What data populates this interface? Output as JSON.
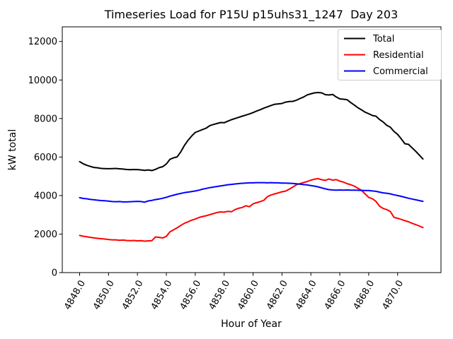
{
  "chart_data": {
    "type": "line",
    "title": "Timeseries Load for P15U p15uhs31_1247  Day 203",
    "xlabel": "Hour of Year",
    "ylabel": "kW total",
    "background_color": "#ffffff",
    "grid": false,
    "legend_position": "upper right",
    "xlim": [
      4846.8,
      4873.0
    ],
    "ylim": [
      0,
      12760
    ],
    "x_ticks": {
      "values": [
        4848,
        4850,
        4852,
        4854,
        4856,
        4858,
        4860,
        4862,
        4864,
        4866,
        4868,
        4870
      ],
      "labels": [
        "4848.0",
        "4850.0",
        "4852.0",
        "4854.0",
        "4856.0",
        "4858.0",
        "4860.0",
        "4862.0",
        "4864.0",
        "4866.0",
        "4868.0",
        "4870.0"
      ]
    },
    "y_ticks": {
      "values": [
        0,
        2000,
        4000,
        6000,
        8000,
        10000,
        12000
      ],
      "labels": [
        "0",
        "2000",
        "4000",
        "6000",
        "8000",
        "10000",
        "12000"
      ]
    },
    "x_start": 4848.0,
    "x_step": 0.25,
    "series": [
      {
        "name": "Total",
        "color": "#000000",
        "values": [
          5760,
          5650,
          5570,
          5510,
          5460,
          5440,
          5410,
          5400,
          5395,
          5400,
          5410,
          5390,
          5375,
          5355,
          5345,
          5355,
          5350,
          5330,
          5310,
          5330,
          5300,
          5360,
          5450,
          5500,
          5640,
          5880,
          5960,
          6010,
          6270,
          6600,
          6870,
          7090,
          7280,
          7350,
          7430,
          7500,
          7630,
          7690,
          7740,
          7790,
          7780,
          7860,
          7940,
          8000,
          8060,
          8120,
          8180,
          8240,
          8310,
          8390,
          8460,
          8540,
          8610,
          8680,
          8740,
          8760,
          8780,
          8850,
          8880,
          8890,
          8950,
          9040,
          9120,
          9230,
          9280,
          9330,
          9350,
          9330,
          9240,
          9220,
          9250,
          9120,
          9020,
          9000,
          8980,
          8830,
          8700,
          8560,
          8450,
          8330,
          8250,
          8160,
          8120,
          7950,
          7820,
          7650,
          7550,
          7330,
          7180,
          6950,
          6690,
          6660,
          6480,
          6300,
          6100,
          5900
        ]
      },
      {
        "name": "Residential",
        "color": "#ff0000",
        "values": [
          1930,
          1890,
          1860,
          1830,
          1800,
          1780,
          1760,
          1740,
          1720,
          1700,
          1700,
          1680,
          1690,
          1670,
          1660,
          1670,
          1650,
          1660,
          1630,
          1650,
          1660,
          1850,
          1830,
          1800,
          1880,
          2120,
          2220,
          2330,
          2450,
          2560,
          2640,
          2720,
          2780,
          2860,
          2910,
          2950,
          3010,
          3060,
          3120,
          3150,
          3140,
          3180,
          3160,
          3270,
          3340,
          3380,
          3470,
          3420,
          3570,
          3630,
          3690,
          3760,
          3950,
          4030,
          4090,
          4140,
          4200,
          4230,
          4330,
          4440,
          4560,
          4620,
          4680,
          4730,
          4800,
          4850,
          4880,
          4820,
          4790,
          4860,
          4800,
          4830,
          4750,
          4700,
          4620,
          4560,
          4490,
          4380,
          4270,
          4090,
          3900,
          3840,
          3700,
          3450,
          3330,
          3270,
          3170,
          2870,
          2820,
          2760,
          2700,
          2640,
          2560,
          2490,
          2420,
          2340
        ]
      },
      {
        "name": "Commercial",
        "color": "#0000ff",
        "values": [
          3890,
          3850,
          3830,
          3800,
          3780,
          3760,
          3740,
          3730,
          3710,
          3690,
          3680,
          3690,
          3670,
          3670,
          3680,
          3690,
          3700,
          3690,
          3660,
          3720,
          3750,
          3790,
          3820,
          3860,
          3910,
          3970,
          4020,
          4070,
          4110,
          4150,
          4180,
          4210,
          4240,
          4280,
          4330,
          4370,
          4410,
          4440,
          4470,
          4500,
          4530,
          4560,
          4580,
          4600,
          4620,
          4640,
          4650,
          4660,
          4660,
          4670,
          4670,
          4670,
          4660,
          4670,
          4660,
          4660,
          4650,
          4650,
          4640,
          4630,
          4610,
          4590,
          4570,
          4550,
          4520,
          4490,
          4450,
          4400,
          4350,
          4310,
          4290,
          4280,
          4290,
          4280,
          4290,
          4280,
          4280,
          4275,
          4270,
          4265,
          4260,
          4240,
          4220,
          4180,
          4140,
          4120,
          4090,
          4040,
          4000,
          3960,
          3910,
          3860,
          3820,
          3780,
          3740,
          3700
        ]
      }
    ]
  }
}
